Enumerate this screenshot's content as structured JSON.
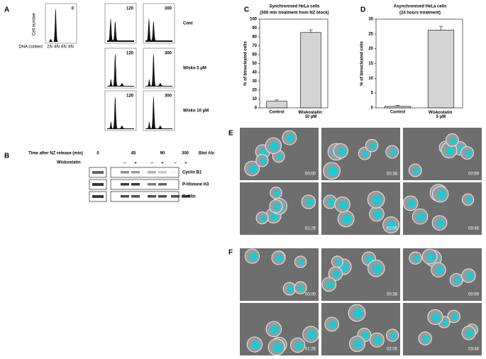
{
  "panel_a": {
    "label": "A",
    "y_axis_label": "Cell number",
    "x_axis_label": "DNA content",
    "x_ticks": [
      "2N",
      "4N",
      "6N",
      "8N"
    ],
    "rows": [
      {
        "name": "Cont",
        "times": [
          "0",
          "120",
          "300"
        ]
      },
      {
        "name": "Wisko 5 µM",
        "times": [
          "120",
          "300"
        ]
      },
      {
        "name": "Wisko 10 µM",
        "times": [
          "120",
          "300"
        ]
      }
    ]
  },
  "panel_b": {
    "label": "B",
    "time_header": "Time after NZ release (min)",
    "times": [
      "0",
      "45",
      "90",
      "300"
    ],
    "treatment": "Wiskostatin",
    "signs": [
      "−",
      "+",
      "−",
      "+",
      "−",
      "+"
    ],
    "blot_header": "Blot Ab:",
    "antibodies": [
      "Cyclin B1",
      "P-Histone H3",
      "Cofilin"
    ]
  },
  "chart_data": [
    {
      "type": "bar",
      "label": "C",
      "title": "Synchronised HeLa cells",
      "subtitle": "(300 min treatment from NZ block)",
      "y_label": "% of binucleated cells",
      "categories": [
        "Control",
        "Wiskostatin 10 µM"
      ],
      "values": [
        7.5,
        85
      ],
      "errors": [
        1.5,
        3
      ],
      "color": "#d4d4d4",
      "ylim": [
        0,
        100
      ],
      "yticks": [
        0,
        10,
        20,
        30,
        40,
        50,
        60,
        70,
        80,
        90,
        100
      ]
    },
    {
      "type": "bar",
      "label": "D",
      "title": "Asynchronised HeLa cells",
      "subtitle": "(24 hours treatment)",
      "y_label": "% of binucleated cells",
      "categories": [
        "Control",
        "Wiskostatin 5 µM"
      ],
      "values": [
        0.5,
        26.3
      ],
      "errors": [
        0.3,
        1.3
      ],
      "color": "#d4d4d4",
      "ylim": [
        0,
        30
      ],
      "yticks": [
        0,
        5,
        10,
        15,
        20,
        25,
        30
      ]
    }
  ],
  "panel_e": {
    "label": "E",
    "timestamps": [
      "00:00",
      "00:38",
      "00:59",
      "01:26",
      "02:05",
      "03:48"
    ]
  },
  "panel_f": {
    "label": "F",
    "timestamps": [
      "00:00",
      "00:38",
      "00:59",
      "01:26",
      "02:05",
      "03:48"
    ]
  }
}
